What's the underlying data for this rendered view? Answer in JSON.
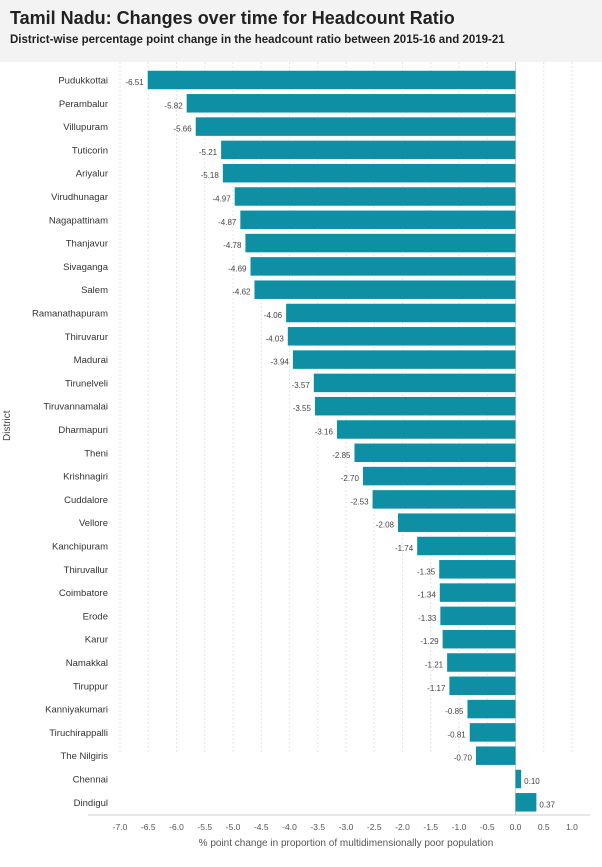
{
  "chart_data": {
    "type": "bar",
    "orientation": "horizontal",
    "title": "Tamil Nadu: Changes over time for Headcount Ratio",
    "subtitle": "District-wise percentage point change in the headcount ratio between 2015-16 and 2019-21",
    "ylabel": "District",
    "xlabel": "% point change in proportion of multidimensionally poor population",
    "xlim": [
      -7.0,
      1.0
    ],
    "xticks": [
      "-7.0",
      "-6.5",
      "-6.0",
      "-5.5",
      "-5.0",
      "-4.5",
      "-4.0",
      "-3.5",
      "-3.0",
      "-2.5",
      "-2.0",
      "-1.5",
      "-1.0",
      "-0.5",
      "0.0",
      "0.5",
      "1.0"
    ],
    "bar_color": "#0e8fa3",
    "categories": [
      "Pudukkottai",
      "Perambalur",
      "Villupuram",
      "Tuticorin",
      "Ariyalur",
      "Virudhunagar",
      "Nagapattinam",
      "Thanjavur",
      "Sivaganga",
      "Salem",
      "Ramanathapuram",
      "Thiruvarur",
      "Madurai",
      "Tirunelveli",
      "Tiruvannamalai",
      "Dharmapuri",
      "Theni",
      "Krishnagiri",
      "Cuddalore",
      "Vellore",
      "Kanchipuram",
      "Thiruvallur",
      "Coimbatore",
      "Erode",
      "Karur",
      "Namakkal",
      "Tiruppur",
      "Kanniyakumari",
      "Tiruchirappalli",
      "The Nilgiris",
      "Chennai",
      "Dindigul"
    ],
    "values": [
      -6.51,
      -5.82,
      -5.66,
      -5.21,
      -5.18,
      -4.97,
      -4.87,
      -4.78,
      -4.69,
      -4.62,
      -4.06,
      -4.03,
      -3.94,
      -3.57,
      -3.55,
      -3.16,
      -2.85,
      -2.7,
      -2.53,
      -2.08,
      -1.74,
      -1.35,
      -1.34,
      -1.33,
      -1.29,
      -1.21,
      -1.17,
      -0.85,
      -0.81,
      -0.7,
      0.1,
      0.37
    ],
    "value_labels": [
      "-6.51",
      "-5.82",
      "-5.66",
      "-5.21",
      "-5.18",
      "-4.97",
      "-4.87",
      "-4.78",
      "-4.69",
      "-4.62",
      "-4.06",
      "-4.03",
      "-3.94",
      "-3.57",
      "-3.55",
      "-3.16",
      "-2.85",
      "-2.70",
      "-2.53",
      "-2.08",
      "-1.74",
      "-1.35",
      "-1.34",
      "-1.33",
      "-1.29",
      "-1.21",
      "-1.17",
      "-0.85",
      "-0.81",
      "-0.70",
      "0.10",
      "0.37"
    ]
  }
}
